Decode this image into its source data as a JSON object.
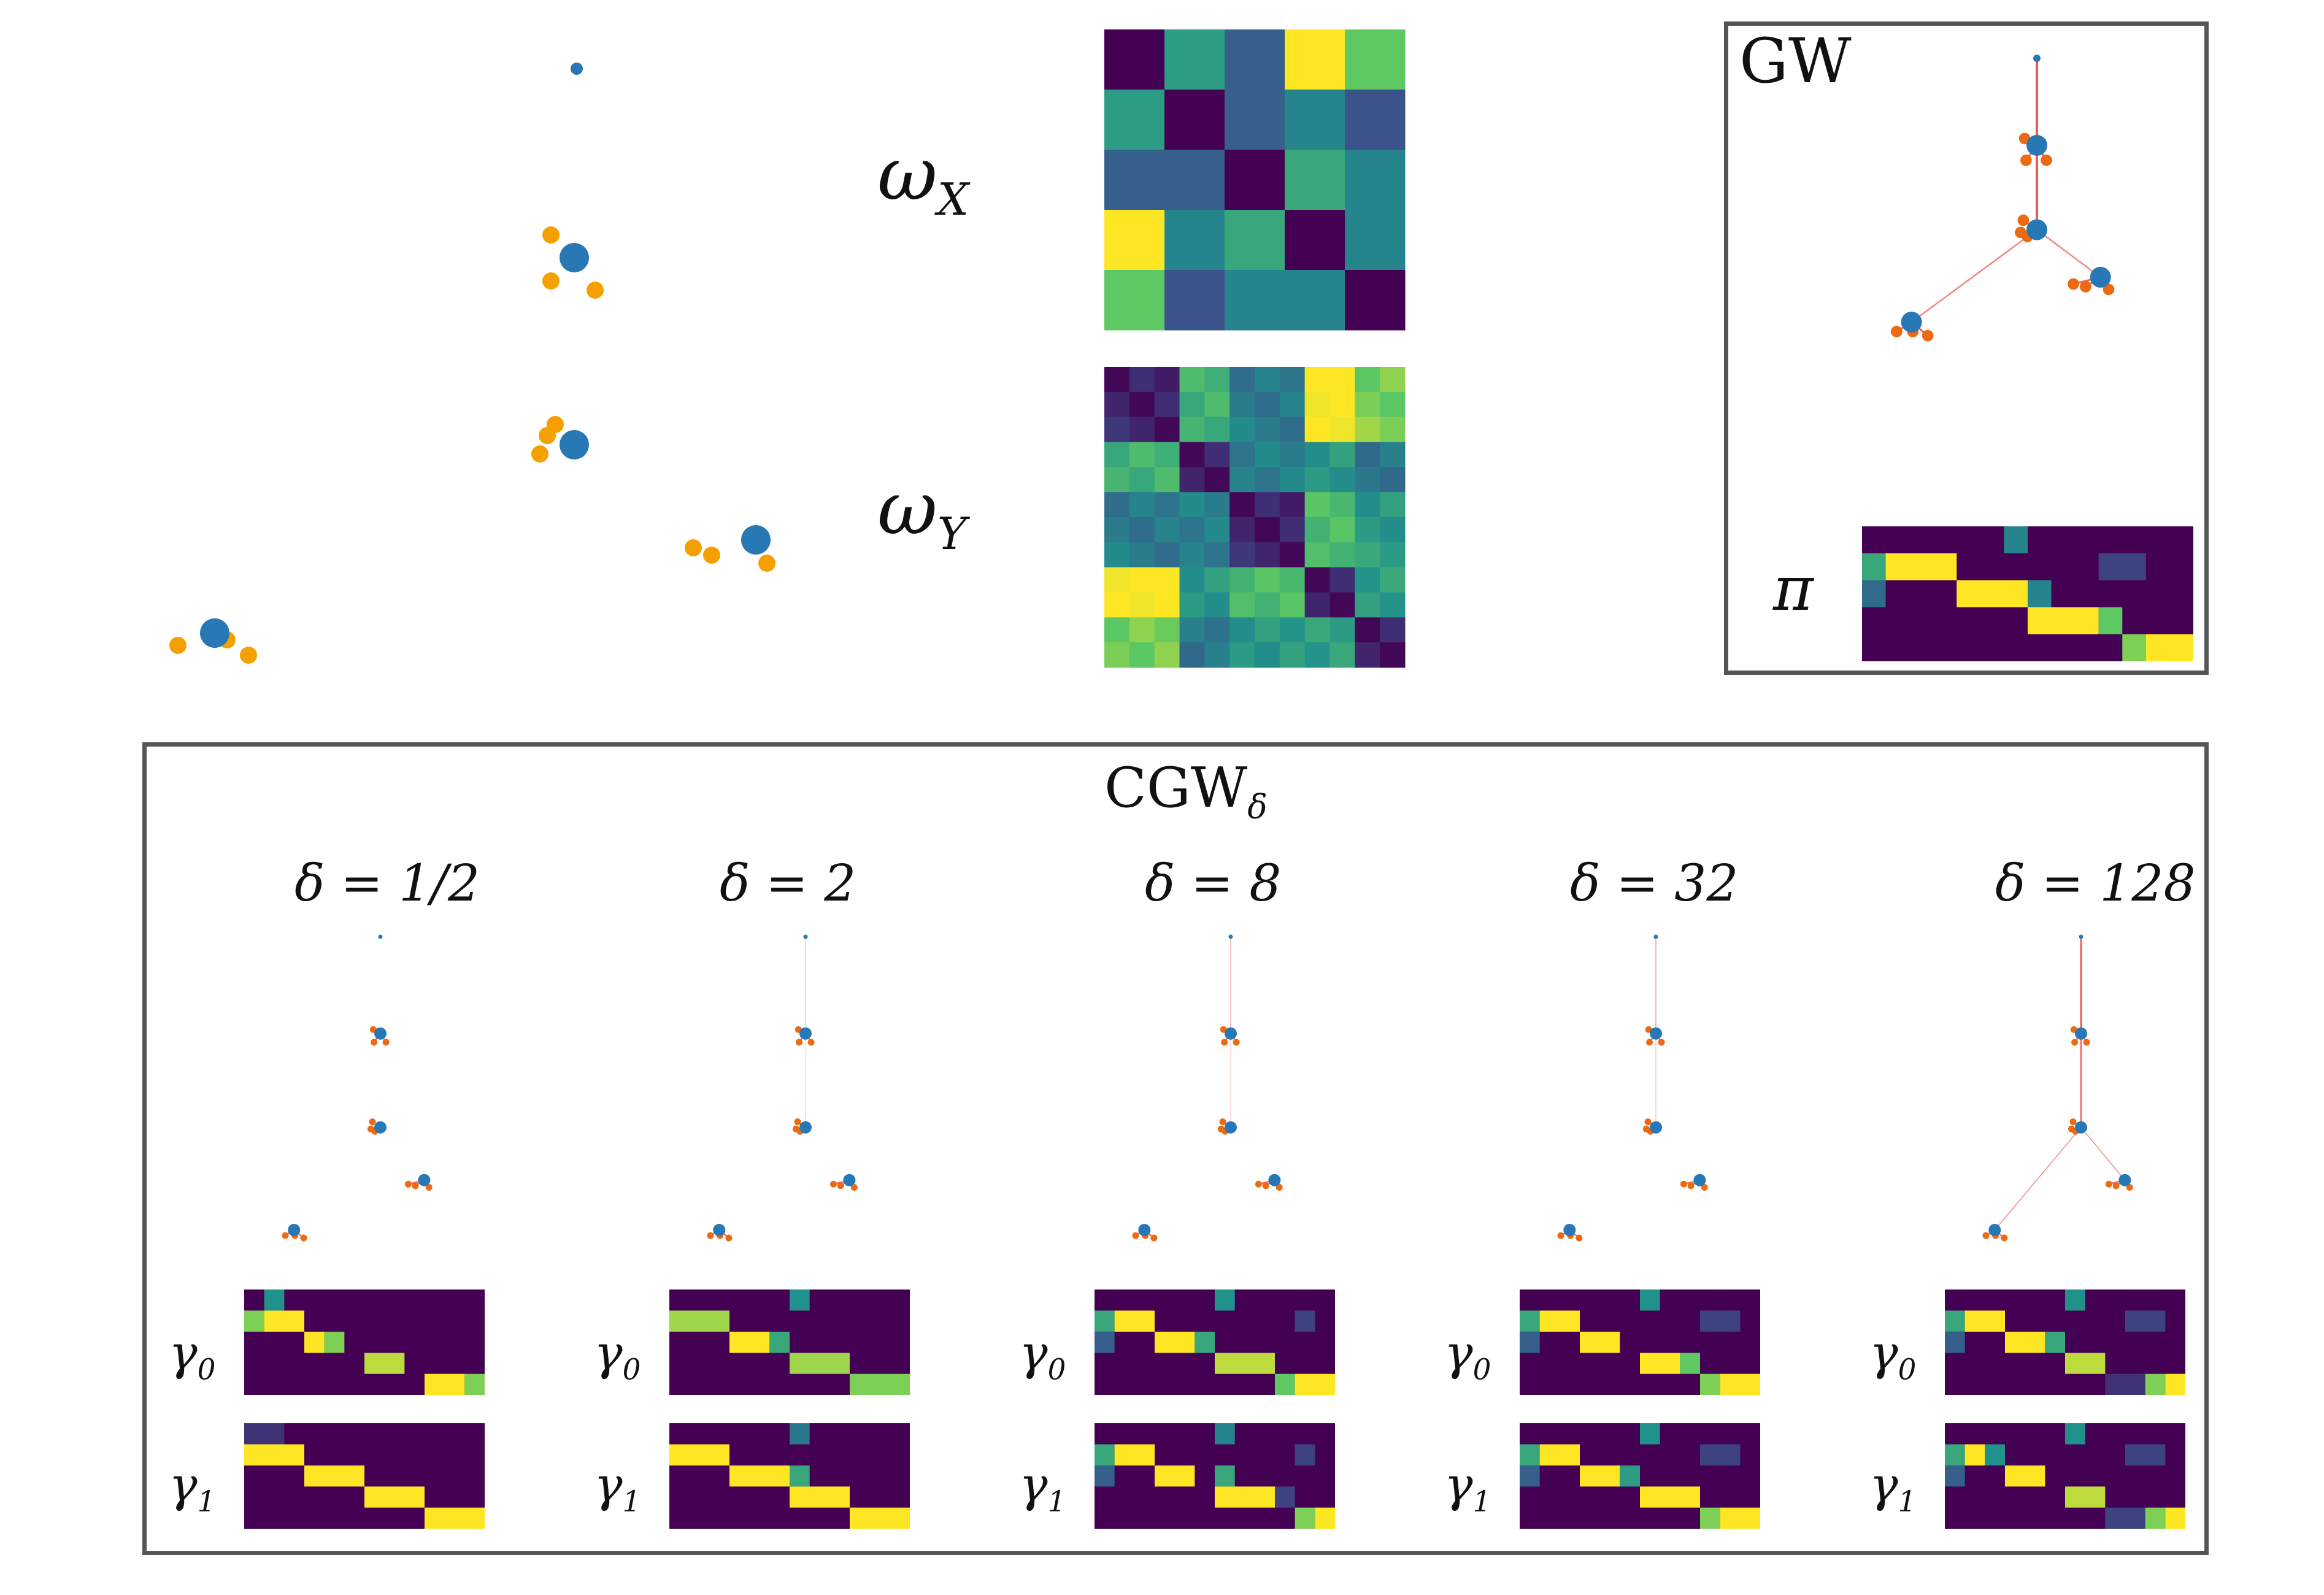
{
  "colors": {
    "node_blue": "#2878b5",
    "node_orange": "#f5a000",
    "node_orange_dark": "#ee6a12",
    "edge_red": "#e8403a",
    "frame": "#555555",
    "viridis": [
      "#440154",
      "#3b528b",
      "#21918c",
      "#5ec962",
      "#fde725"
    ]
  },
  "top_left": {
    "description": "scatter of blue points with orange satellites"
  },
  "matrices": {
    "wx_label": "ω",
    "wx_sub": "X",
    "wy_label": "ω",
    "wy_sub": "Y",
    "wx": [
      [
        0.0,
        0.55,
        0.3,
        1.0,
        0.75
      ],
      [
        0.55,
        0.0,
        0.3,
        0.45,
        0.25
      ],
      [
        0.3,
        0.3,
        0.0,
        0.6,
        0.45
      ],
      [
        1.0,
        0.45,
        0.6,
        0.0,
        0.45
      ],
      [
        0.75,
        0.25,
        0.45,
        0.45,
        0.0
      ]
    ]
  },
  "gw_panel": {
    "title": "GW",
    "pi_label": "π"
  },
  "cgw_panel": {
    "title": "CGW",
    "title_sub": "δ",
    "columns": [
      {
        "label": "δ = 1/2"
      },
      {
        "label": "δ = 2"
      },
      {
        "label": "δ = 8"
      },
      {
        "label": "δ = 32"
      },
      {
        "label": "δ = 128"
      }
    ],
    "gamma0_label": "γ",
    "gamma0_sub": "0",
    "gamma1_label": "γ",
    "gamma1_sub": "1"
  }
}
